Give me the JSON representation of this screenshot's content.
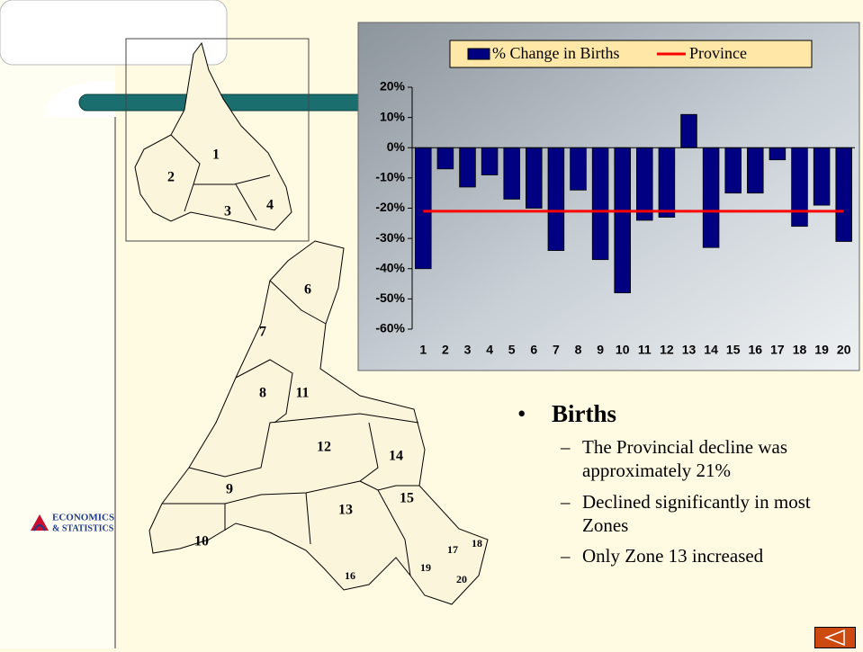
{
  "chart_data": {
    "type": "bar",
    "categories": [
      "1",
      "2",
      "3",
      "4",
      "5",
      "6",
      "7",
      "8",
      "9",
      "10",
      "11",
      "12",
      "13",
      "14",
      "15",
      "16",
      "17",
      "18",
      "19",
      "20"
    ],
    "series": [
      {
        "name": "% Change in Births",
        "color": "#000080",
        "values": [
          -40,
          -7,
          -13,
          -9,
          -17,
          -20,
          -34,
          -14,
          -37,
          -48,
          -24,
          -23,
          11,
          -33,
          -15,
          -15,
          -4,
          -26,
          -19,
          -31
        ]
      },
      {
        "name": "Province",
        "type": "line",
        "color": "#ff0000",
        "values": [
          -21,
          -21,
          -21,
          -21,
          -21,
          -21,
          -21,
          -21,
          -21,
          -21,
          -21,
          -21,
          -21,
          -21,
          -21,
          -21,
          -21,
          -21,
          -21,
          -21
        ]
      }
    ],
    "ylim": [
      -60,
      20
    ],
    "yticks": [
      {
        "value": -60,
        "label": "-60%"
      },
      {
        "value": -50,
        "label": "-50%"
      },
      {
        "value": -40,
        "label": "-40%"
      },
      {
        "value": -30,
        "label": "-30%"
      },
      {
        "value": -20,
        "label": "-20%"
      },
      {
        "value": -10,
        "label": "-10%"
      },
      {
        "value": 0,
        "label": "0%"
      },
      {
        "value": 10,
        "label": "10%"
      },
      {
        "value": 20,
        "label": "20%"
      }
    ],
    "legend": "top"
  },
  "map": {
    "zones": [
      "1",
      "2",
      "3",
      "4",
      "6",
      "7",
      "8",
      "9",
      "10",
      "11",
      "12",
      "13",
      "14",
      "15",
      "16",
      "17",
      "18",
      "19",
      "20"
    ]
  },
  "logo": {
    "line1": "ECONOMICS",
    "line2": "& STATISTICS"
  },
  "bullets": {
    "title": "Births",
    "items": [
      "The Provincial decline was approximately 21%",
      "Declined significantly in most Zones",
      "Only Zone 13 increased"
    ]
  }
}
